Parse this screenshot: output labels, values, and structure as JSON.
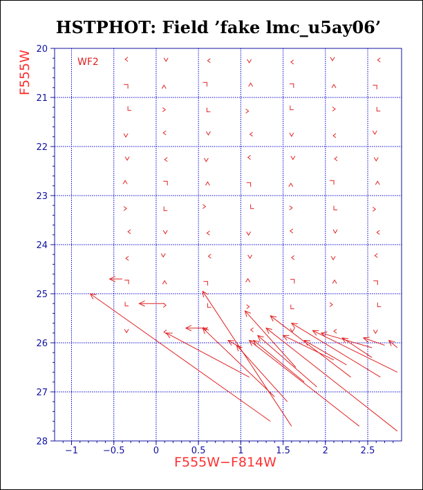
{
  "chart_data": {
    "type": "scatter",
    "title": "HSTPHOT: Field ’fake lmc_u5ay06’",
    "xlabel": "F555W−F814W",
    "ylabel": "F555W",
    "panel_label": "WF2",
    "xlim": [
      -1.2,
      2.9
    ],
    "ylim": [
      28,
      20
    ],
    "y_inverted": true,
    "grid": true,
    "x_ticks": [
      "−1",
      "−0.5",
      "0",
      "0.5",
      "1",
      "1.5",
      "2",
      "2.5"
    ],
    "x_tick_values": [
      -1,
      -0.5,
      0,
      0.5,
      1,
      1.5,
      2,
      2.5
    ],
    "y_ticks": [
      "20",
      "21",
      "22",
      "23",
      "24",
      "25",
      "26",
      "27",
      "28"
    ],
    "y_tick_values": [
      20,
      21,
      22,
      23,
      24,
      25,
      26,
      27,
      28
    ],
    "colors": {
      "grid": "#0000cc",
      "marks": "#e02020",
      "axis": "#1010a0",
      "title": "#000000"
    },
    "grid_color_vectors": {
      "description": "small 'v' marks on a regular input grid (color, magnitude)",
      "colors": [
        -0.35,
        0.1,
        0.6,
        1.1,
        1.6,
        2.1,
        2.6
      ],
      "mags": [
        20.25,
        20.75,
        21.25,
        21.75,
        22.25,
        22.75,
        23.25,
        23.75,
        24.25,
        24.75,
        25.25,
        25.75
      ]
    },
    "long_arrows": [
      {
        "x1": 1.35,
        "y1": 27.6,
        "x2": -0.78,
        "y2": 25.0
      },
      {
        "x1": 1.1,
        "y1": 26.7,
        "x2": 0.12,
        "y2": 25.8
      },
      {
        "x1": 1.4,
        "y1": 27.1,
        "x2": 0.55,
        "y2": 25.7
      },
      {
        "x1": 1.6,
        "y1": 27.7,
        "x2": 0.55,
        "y2": 24.95
      },
      {
        "x1": 1.0,
        "y1": 26.1,
        "x2": 0.85,
        "y2": 25.95
      },
      {
        "x1": 1.55,
        "y1": 27.2,
        "x2": 0.95,
        "y2": 26.05
      },
      {
        "x1": 2.4,
        "y1": 27.7,
        "x2": 1.1,
        "y2": 25.95
      },
      {
        "x1": 1.9,
        "y1": 26.9,
        "x2": 1.2,
        "y2": 25.85
      },
      {
        "x1": 2.85,
        "y1": 27.8,
        "x2": 1.3,
        "y2": 25.7
      },
      {
        "x1": 2.3,
        "y1": 26.7,
        "x2": 1.35,
        "y2": 25.45
      },
      {
        "x1": 2.65,
        "y1": 26.7,
        "x2": 1.6,
        "y2": 25.6
      },
      {
        "x1": 2.85,
        "y1": 26.6,
        "x2": 1.85,
        "y2": 25.75
      },
      {
        "x1": 2.1,
        "y1": 26.35,
        "x2": 1.5,
        "y2": 25.85
      },
      {
        "x1": 2.55,
        "y1": 26.1,
        "x2": 1.95,
        "y2": 25.8
      },
      {
        "x1": 1.75,
        "y1": 26.8,
        "x2": 1.15,
        "y2": 25.95
      },
      {
        "x1": 2.55,
        "y1": 26.3,
        "x2": 2.2,
        "y2": 25.9
      },
      {
        "x1": 2.7,
        "y1": 26.05,
        "x2": 2.45,
        "y2": 25.9
      },
      {
        "x1": 2.85,
        "y1": 26.1,
        "x2": 2.75,
        "y2": 25.95
      },
      {
        "x1": 2.25,
        "y1": 26.45,
        "x2": 1.75,
        "y2": 25.95
      },
      {
        "x1": 1.65,
        "y1": 26.5,
        "x2": 1.05,
        "y2": 25.35
      }
    ],
    "short_arrows": [
      {
        "x1": 0.6,
        "y1": 25.7,
        "x2": 0.35,
        "y2": 25.7
      },
      {
        "x1": 0.1,
        "y1": 25.2,
        "x2": -0.2,
        "y2": 25.2
      },
      {
        "x1": -0.4,
        "y1": 24.7,
        "x2": -0.55,
        "y2": 24.7
      }
    ]
  }
}
